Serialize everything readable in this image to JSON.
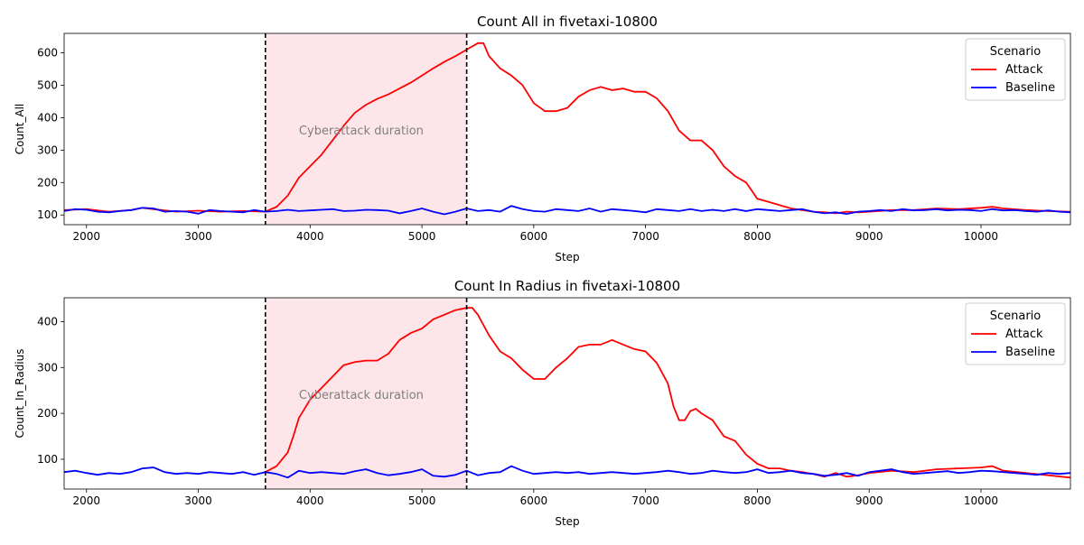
{
  "chart_data": [
    {
      "type": "line",
      "title": "Count All in fivetaxi-10800",
      "xlabel": "Step",
      "ylabel": "Count_All",
      "xlim": [
        1800,
        10800
      ],
      "ylim": [
        70,
        660
      ],
      "x_ticks": [
        2000,
        3000,
        4000,
        5000,
        6000,
        7000,
        8000,
        9000,
        10000
      ],
      "y_ticks": [
        100,
        200,
        300,
        400,
        500,
        600
      ],
      "shaded_region": {
        "x_start": 3600,
        "x_end": 5400,
        "color": "#fde6ea",
        "label": "Cyberattack duration",
        "label_x": 3900,
        "label_y": 360
      },
      "vertical_lines": [
        3600,
        5400
      ],
      "legend": {
        "title": "Scenario",
        "position": "top-right"
      },
      "series": [
        {
          "name": "Attack",
          "color": "#ff0000",
          "x": [
            1800,
            2000,
            2200,
            2400,
            2500,
            2600,
            2800,
            3000,
            3200,
            3400,
            3600,
            3700,
            3800,
            3900,
            4000,
            4100,
            4200,
            4300,
            4400,
            4500,
            4600,
            4700,
            4800,
            4900,
            5000,
            5100,
            5200,
            5300,
            5400,
            5500,
            5550,
            5600,
            5700,
            5800,
            5900,
            6000,
            6100,
            6200,
            6300,
            6400,
            6500,
            6600,
            6700,
            6800,
            6900,
            7000,
            7100,
            7200,
            7300,
            7400,
            7500,
            7600,
            7700,
            7800,
            7900,
            8000,
            8100,
            8200,
            8300,
            8400,
            8500,
            8600,
            8700,
            8800,
            8900,
            9000,
            9200,
            9400,
            9600,
            9800,
            10000,
            10100,
            10200,
            10400,
            10600,
            10800
          ],
          "y": [
            115,
            118,
            110,
            115,
            122,
            118,
            110,
            113,
            110,
            112,
            110,
            125,
            160,
            215,
            250,
            285,
            330,
            375,
            415,
            440,
            458,
            472,
            490,
            508,
            530,
            552,
            572,
            590,
            610,
            630,
            630,
            590,
            552,
            530,
            500,
            445,
            420,
            420,
            430,
            465,
            485,
            495,
            485,
            490,
            480,
            480,
            460,
            420,
            360,
            330,
            330,
            300,
            250,
            220,
            200,
            150,
            140,
            130,
            120,
            115,
            110,
            108,
            105,
            110,
            108,
            110,
            115,
            115,
            120,
            118,
            122,
            125,
            120,
            115,
            112,
            110
          ]
        },
        {
          "name": "Baseline",
          "color": "#0000ff",
          "x": [
            1800,
            1900,
            2000,
            2100,
            2200,
            2300,
            2400,
            2500,
            2600,
            2700,
            2800,
            2900,
            3000,
            3100,
            3200,
            3300,
            3400,
            3500,
            3600,
            3700,
            3800,
            3900,
            4000,
            4100,
            4200,
            4300,
            4400,
            4500,
            4600,
            4700,
            4800,
            4900,
            5000,
            5100,
            5200,
            5300,
            5400,
            5500,
            5600,
            5700,
            5800,
            5900,
            6000,
            6100,
            6200,
            6300,
            6400,
            6500,
            6600,
            6700,
            6800,
            6900,
            7000,
            7100,
            7200,
            7300,
            7400,
            7500,
            7600,
            7700,
            7800,
            7900,
            8000,
            8100,
            8200,
            8300,
            8400,
            8500,
            8600,
            8700,
            8800,
            8900,
            9000,
            9100,
            9200,
            9300,
            9400,
            9500,
            9600,
            9700,
            9800,
            9900,
            10000,
            10100,
            10200,
            10300,
            10400,
            10500,
            10600,
            10700,
            10800
          ],
          "y": [
            112,
            118,
            116,
            110,
            108,
            112,
            115,
            122,
            120,
            110,
            112,
            110,
            104,
            115,
            112,
            110,
            108,
            115,
            110,
            112,
            116,
            112,
            114,
            116,
            118,
            112,
            113,
            116,
            115,
            113,
            105,
            112,
            120,
            110,
            102,
            110,
            120,
            112,
            115,
            110,
            128,
            118,
            112,
            110,
            118,
            115,
            112,
            120,
            110,
            118,
            115,
            112,
            108,
            118,
            115,
            112,
            118,
            112,
            116,
            112,
            118,
            112,
            118,
            115,
            112,
            115,
            118,
            110,
            105,
            108,
            103,
            110,
            112,
            115,
            112,
            118,
            114,
            115,
            118,
            114,
            116,
            115,
            112,
            118,
            114,
            115,
            112,
            110,
            114,
            110,
            108
          ]
        }
      ]
    },
    {
      "type": "line",
      "title": "Count In Radius in fivetaxi-10800",
      "xlabel": "Step",
      "ylabel": "Count_In_Radius",
      "xlim": [
        1800,
        10800
      ],
      "ylim": [
        35,
        452
      ],
      "x_ticks": [
        2000,
        3000,
        4000,
        5000,
        6000,
        7000,
        8000,
        9000,
        10000
      ],
      "y_ticks": [
        100,
        200,
        300,
        400
      ],
      "shaded_region": {
        "x_start": 3600,
        "x_end": 5400,
        "color": "#fde6ea",
        "label": "Cyberattack duration",
        "label_x": 3900,
        "label_y": 240
      },
      "vertical_lines": [
        3600,
        5400
      ],
      "legend": {
        "title": "Scenario",
        "position": "top-right"
      },
      "series": [
        {
          "name": "Attack",
          "color": "#ff0000",
          "x": [
            3600,
            3700,
            3800,
            3850,
            3900,
            4000,
            4100,
            4200,
            4300,
            4400,
            4500,
            4600,
            4700,
            4800,
            4900,
            5000,
            5100,
            5200,
            5300,
            5400,
            5450,
            5500,
            5600,
            5700,
            5800,
            5900,
            6000,
            6100,
            6200,
            6300,
            6400,
            6500,
            6600,
            6700,
            6800,
            6900,
            7000,
            7100,
            7200,
            7250,
            7300,
            7350,
            7400,
            7450,
            7500,
            7600,
            7700,
            7800,
            7900,
            8000,
            8100,
            8200,
            8300,
            8400,
            8500,
            8600,
            8700,
            8800,
            8900,
            9000,
            9200,
            9400,
            9600,
            9800,
            10000,
            10100,
            10200,
            10400,
            10600,
            10800
          ],
          "y": [
            72,
            85,
            115,
            150,
            190,
            230,
            255,
            280,
            305,
            312,
            315,
            315,
            330,
            360,
            375,
            385,
            405,
            415,
            425,
            430,
            430,
            415,
            370,
            335,
            320,
            295,
            275,
            275,
            300,
            320,
            345,
            350,
            350,
            360,
            350,
            340,
            335,
            310,
            265,
            215,
            185,
            185,
            205,
            210,
            200,
            185,
            150,
            140,
            110,
            90,
            80,
            80,
            75,
            72,
            68,
            62,
            70,
            62,
            65,
            70,
            75,
            72,
            78,
            80,
            82,
            85,
            75,
            70,
            65,
            60
          ]
        },
        {
          "name": "Baseline",
          "color": "#0000ff",
          "x": [
            1800,
            1900,
            2000,
            2100,
            2200,
            2300,
            2400,
            2500,
            2600,
            2700,
            2800,
            2900,
            3000,
            3100,
            3200,
            3300,
            3400,
            3500,
            3600,
            3700,
            3800,
            3900,
            4000,
            4100,
            4200,
            4300,
            4400,
            4500,
            4600,
            4700,
            4800,
            4900,
            5000,
            5100,
            5200,
            5300,
            5400,
            5500,
            5600,
            5700,
            5800,
            5900,
            6000,
            6100,
            6200,
            6300,
            6400,
            6500,
            6600,
            6700,
            6800,
            6900,
            7000,
            7100,
            7200,
            7300,
            7400,
            7500,
            7600,
            7700,
            7800,
            7900,
            8000,
            8100,
            8200,
            8300,
            8400,
            8500,
            8600,
            8700,
            8800,
            8900,
            9000,
            9100,
            9200,
            9300,
            9400,
            9500,
            9600,
            9700,
            9800,
            9900,
            10000,
            10100,
            10200,
            10300,
            10400,
            10500,
            10600,
            10700,
            10800
          ],
          "y": [
            72,
            75,
            70,
            66,
            70,
            68,
            72,
            80,
            82,
            72,
            68,
            70,
            68,
            72,
            70,
            68,
            72,
            66,
            72,
            68,
            60,
            75,
            70,
            72,
            70,
            68,
            74,
            78,
            70,
            65,
            68,
            72,
            78,
            64,
            62,
            66,
            75,
            65,
            70,
            72,
            85,
            75,
            68,
            70,
            72,
            70,
            72,
            68,
            70,
            72,
            70,
            68,
            70,
            72,
            75,
            72,
            68,
            70,
            75,
            72,
            70,
            72,
            78,
            70,
            72,
            75,
            70,
            68,
            64,
            66,
            70,
            64,
            72,
            75,
            78,
            72,
            68,
            70,
            72,
            74,
            70,
            72,
            75,
            74,
            72,
            70,
            68,
            66,
            70,
            68,
            70
          ]
        }
      ]
    }
  ]
}
